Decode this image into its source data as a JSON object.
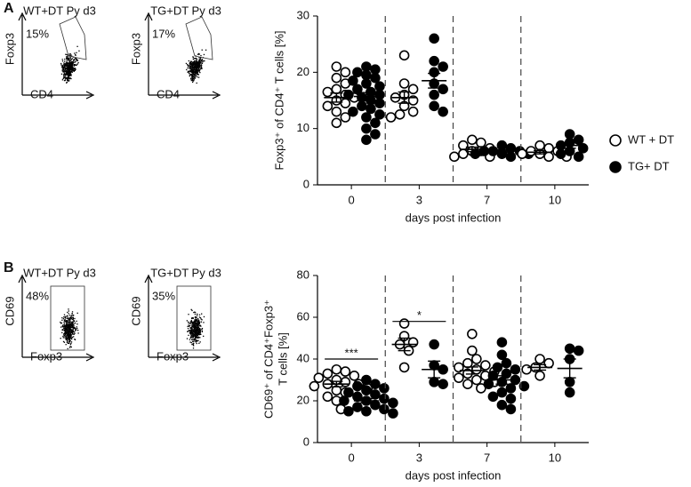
{
  "panel_labels": [
    "A",
    "B"
  ],
  "flow_plots": [
    {
      "title": "WT+DT Py d3",
      "percent": "15%",
      "y_label": "Foxp3",
      "x_label": "CD4"
    },
    {
      "title": "TG+DT Py d3",
      "percent": "17%",
      "y_label": "Foxp3",
      "x_label": "CD4"
    },
    {
      "title": "WT+DT Py d3",
      "percent": "48%",
      "y_label": "CD69",
      "x_label": "Foxp3"
    },
    {
      "title": "TG+DT Py d3",
      "percent": "35%",
      "y_label": "CD69",
      "x_label": "Foxp3"
    }
  ],
  "chart_data": [
    {
      "type": "strip",
      "ylabel": [
        "Foxp3⁺ of CD4⁺ T cells [%]"
      ],
      "xlabel": "days post infection",
      "categories": [
        "0",
        "3",
        "7",
        "10"
      ],
      "ylim": [
        0,
        30
      ],
      "yticks": [
        0,
        10,
        20,
        30
      ],
      "series": [
        {
          "name": "WT + DT",
          "color": "#000000",
          "marker": "open",
          "values": [
            [
              21,
              20,
              19,
              18,
              17,
              16.5,
              16,
              15.5,
              15,
              14.5,
              14,
              13,
              12,
              11
            ],
            [
              23,
              18,
              17,
              16,
              15.5,
              15,
              14,
              13,
              12.5,
              12
            ],
            [
              8,
              7.5,
              7,
              6.5,
              6,
              6,
              5.5,
              5,
              5
            ],
            [
              7,
              6.5,
              6,
              6,
              5.5,
              5.5,
              5,
              5
            ]
          ],
          "mean": [
            15.5,
            15.5,
            6.3,
            5.8
          ],
          "sem": [
            0.8,
            1,
            0.4,
            0.3
          ]
        },
        {
          "name": "TG+ DT",
          "color": "#000000",
          "marker": "filled",
          "values": [
            [
              21,
              20.5,
              20,
              19.5,
              19,
              18.5,
              18,
              17.5,
              17,
              16.5,
              16,
              16,
              15.5,
              15,
              14.5,
              14,
              13.5,
              13,
              12.5,
              12,
              11,
              10,
              9,
              8
            ],
            [
              26,
              22,
              21,
              20,
              18,
              17,
              16,
              14,
              13
            ],
            [
              7,
              6.5,
              6,
              6,
              6,
              5.5,
              5.5,
              5.5,
              5
            ],
            [
              9,
              8,
              7.5,
              7,
              6.5,
              6,
              5.5,
              5
            ]
          ],
          "mean": [
            15.7,
            18.5,
            6,
            7
          ],
          "sem": [
            0.7,
            1.3,
            0.2,
            0.5
          ]
        }
      ]
    },
    {
      "type": "strip",
      "ylabel": [
        "CD69⁺ of CD4⁺Foxp3⁺",
        "T cells [%]"
      ],
      "xlabel": "days post infection",
      "categories": [
        "0",
        "3",
        "7",
        "10"
      ],
      "ylim": [
        0,
        80
      ],
      "yticks": [
        0,
        20,
        40,
        60,
        80
      ],
      "annotations": [
        "***",
        "*"
      ],
      "series": [
        {
          "name": "WT + DT",
          "color": "#000000",
          "marker": "open",
          "values": [
            [
              35,
              34,
              33,
              32,
              31,
              30,
              29,
              28,
              28,
              27,
              26,
              25,
              24,
              22,
              20,
              16
            ],
            [
              57,
              51,
              48,
              47,
              44,
              36
            ],
            [
              52,
              44,
              40,
              38,
              37,
              36,
              35,
              34,
              33,
              32,
              31,
              30,
              29,
              28,
              26
            ],
            [
              40,
              38,
              36,
              35,
              32
            ]
          ],
          "mean": [
            28,
            47,
            34.5,
            36
          ],
          "sem": [
            1.3,
            3,
            1.7,
            1.3
          ]
        },
        {
          "name": "TG+ DT",
          "color": "#000000",
          "marker": "filled",
          "values": [
            [
              30,
              28,
              27,
              26,
              25,
              24,
              23,
              22,
              21,
              20,
              20,
              19,
              18,
              17,
              16,
              15,
              15,
              14
            ],
            [
              47,
              37,
              35,
              29,
              28
            ],
            [
              48,
              42,
              38,
              36,
              35,
              33,
              32,
              30,
              29,
              28,
              27,
              26,
              24,
              22,
              21,
              18,
              16
            ],
            [
              45,
              44,
              40,
              29,
              24
            ]
          ],
          "mean": [
            20,
            35,
            30,
            35.5
          ],
          "sem": [
            1,
            4,
            2,
            4.5
          ]
        }
      ]
    }
  ]
}
